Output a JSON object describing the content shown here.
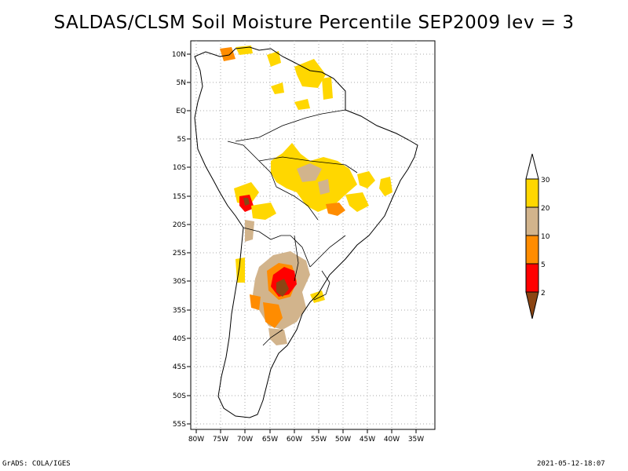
{
  "title": "SALDAS/CLSM Soil Moisture Percentile SEP2009 lev = 3",
  "footer": {
    "left": "GrADS: COLA/IGES",
    "right": "2021-05-12-18:07"
  },
  "map": {
    "lat_labels": [
      "10N",
      "5N",
      "EQ",
      "5S",
      "10S",
      "15S",
      "20S",
      "25S",
      "30S",
      "35S",
      "40S",
      "45S",
      "50S",
      "55S"
    ],
    "lon_labels": [
      "80W",
      "75W",
      "70W",
      "65W",
      "60W",
      "55W",
      "50W",
      "45W",
      "40W",
      "35W"
    ],
    "grid_lines": "dotted"
  },
  "colorbar": {
    "labels": [
      "30",
      "20",
      "10",
      "5",
      "2"
    ],
    "colors": [
      "#ffd700",
      "#d2b48c",
      "#ff8c00",
      "#ff0000",
      "#8b4513"
    ],
    "top_cap_color": "#ffffff"
  },
  "colors": {
    "yellow": "#ffd700",
    "tan": "#d2b48c",
    "orange": "#ff8c00",
    "red": "#ff0000",
    "brown": "#8b4513"
  }
}
